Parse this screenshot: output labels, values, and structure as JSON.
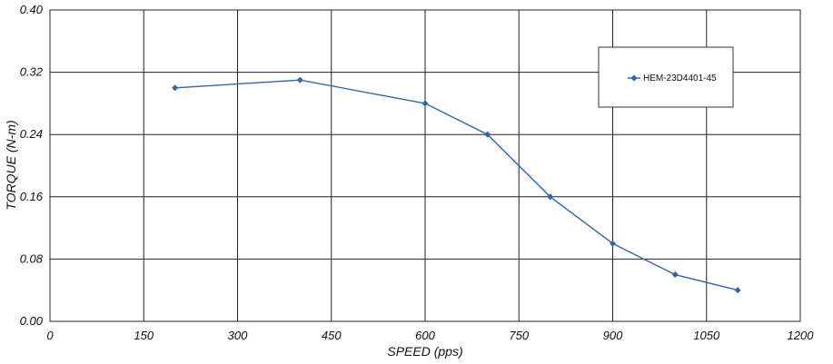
{
  "chart_data": {
    "type": "line",
    "xlabel": "SPEED (pps)",
    "ylabel": "TORQUE (N-m)",
    "xlim": [
      0,
      1200
    ],
    "ylim": [
      0,
      0.4
    ],
    "x_ticks": [
      0,
      150,
      300,
      450,
      600,
      750,
      900,
      1050,
      1200
    ],
    "y_ticks": [
      0.0,
      0.08,
      0.16,
      0.24,
      0.32,
      0.4
    ],
    "y_tick_labels": [
      "0.00",
      "0.08",
      "0.16",
      "0.24",
      "0.32",
      "0.40"
    ],
    "grid": true,
    "legend_position": "top-right",
    "series": [
      {
        "name": "HEM-23D4401-45",
        "color": "#3465a4",
        "x": [
          200,
          400,
          600,
          700,
          800,
          900,
          1000,
          1100
        ],
        "y": [
          0.3,
          0.31,
          0.28,
          0.24,
          0.16,
          0.1,
          0.06,
          0.04
        ]
      }
    ]
  }
}
